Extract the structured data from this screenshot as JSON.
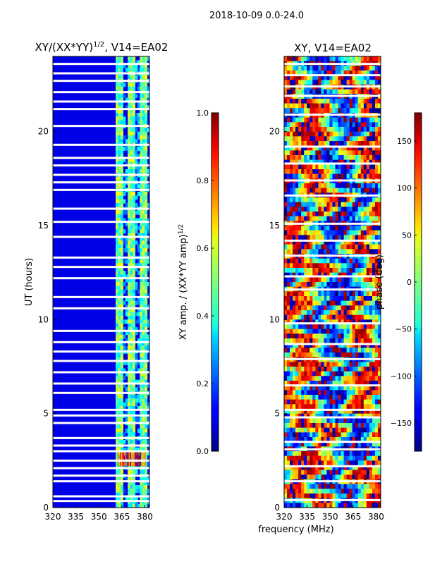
{
  "chart_data": {
    "type": "heatmap",
    "suptitle": "2018-10-09 0.0-24.0",
    "shared_xlabel": "frequency (MHz)",
    "panels": [
      {
        "id": "left",
        "title_base": "XY/(XX*YY)",
        "title_exponent": "1/2",
        "title_suffix": ", V14=EA02",
        "ylabel": "UT (hours)",
        "xlim": [
          320,
          383
        ],
        "ylim": [
          0,
          24
        ],
        "xticks": [
          320,
          335,
          350,
          365,
          380
        ],
        "yticks": [
          0,
          5,
          10,
          15,
          20
        ],
        "colormap": "jet",
        "colorbar": {
          "label_base": "XY amp. / (XX*YY amp)",
          "label_exponent": "1/2",
          "range": [
            0.0,
            1.0
          ],
          "ticks": [
            "0.0",
            "0.2",
            "0.4",
            "0.6",
            "0.8",
            "1.0"
          ]
        },
        "bright_channels_MHz": [
          363,
          371,
          379
        ],
        "bright_value": 0.45,
        "background_value": 0.1,
        "flagged_UT_hours": [
          0.35,
          0.6,
          1.4,
          1.7,
          2.1,
          2.5,
          3.0,
          3.3,
          3.7,
          4.5,
          4.9,
          5.2,
          6.1,
          6.6,
          7.2,
          7.8,
          8.3,
          8.8,
          9.4,
          10.6,
          11.2,
          12.2,
          12.8,
          13.3,
          14.4,
          15.2,
          15.9,
          16.9,
          17.3,
          17.7,
          18.2,
          18.6,
          19.3,
          20.3,
          21.2,
          21.6,
          22.1,
          22.7,
          23.1,
          23.6
        ]
      },
      {
        "id": "right",
        "title": "XY, V14=EA02",
        "xlim": [
          320,
          383
        ],
        "ylim": [
          0,
          24
        ],
        "xticks": [
          320,
          335,
          350,
          365,
          380
        ],
        "yticks": [
          0,
          5,
          10,
          15,
          20
        ],
        "colormap": "jet",
        "colorbar": {
          "label": "phase (deg)",
          "range": [
            -180,
            180
          ],
          "ticks": [
            "150",
            "100",
            "50",
            "0",
            "−50",
            "−100",
            "−150"
          ]
        },
        "flagged_UT_hours": [
          0.4,
          1.4,
          2.2,
          3.1,
          3.5,
          4.8,
          5.2,
          6.5,
          7.9,
          8.7,
          9.8,
          11.6,
          12.3,
          13.4,
          14.2,
          15.1,
          16.6,
          17.4,
          18.3,
          19.2,
          20.9,
          21.9,
          22.4,
          23.0,
          23.6
        ]
      }
    ]
  }
}
